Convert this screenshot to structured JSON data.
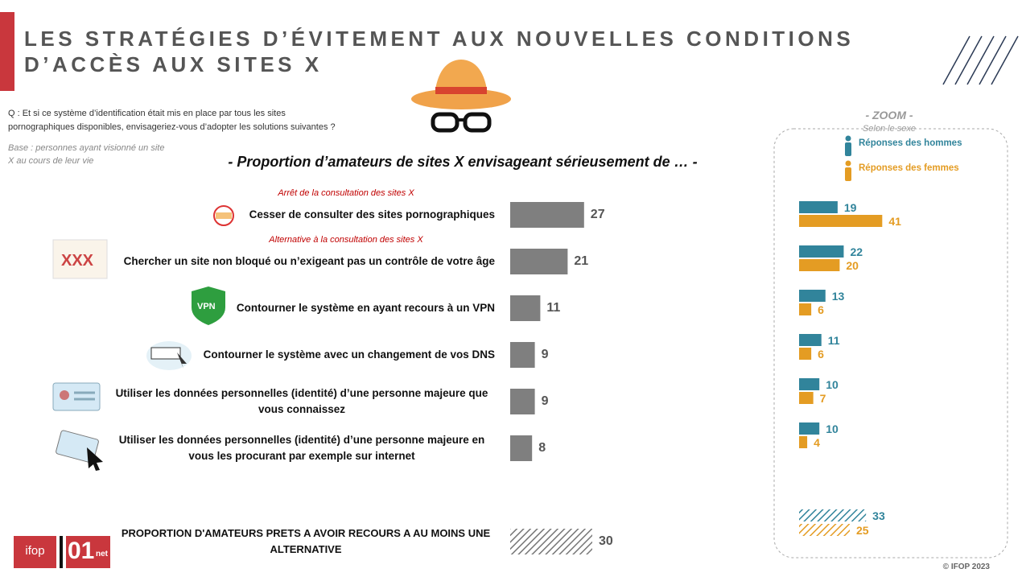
{
  "header": {
    "title_lines": [
      "LES STRATÉGIES D’ÉVITEMENT AUX NOUVELLES CONDITIONS",
      "D’ACCÈS AUX SITES X"
    ],
    "question_lines": [
      "Q : Et si ce système d’identification était mis en place par tous les sites",
      "pornographiques disponibles, envisageriez-vous d’adopter les solutions suivantes ?"
    ],
    "base_lines": [
      "Base : personnes ayant visionné un site",
      "X au cours de leur vie"
    ]
  },
  "chart_data": [
    {
      "type": "hbar",
      "title": "- Proportion d’amateurs de sites X envisageant sérieusement de … -",
      "sections": [
        {
          "label": "Arrêt de la consultation des sites X",
          "start": 0
        },
        {
          "label": "Alternative à la consultation des sites X",
          "start": 1
        }
      ],
      "categories": [
        "Cesser de consulter des sites pornographiques",
        "Chercher un site non bloqué ou n’exigeant pas un contrôle de votre âge",
        "Contourner le système en ayant recours à un VPN",
        "Contourner le système avec un changement de vos DNS",
        "Utiliser les données personnelles (identité) d’une personne majeure que vous connaissez",
        "Utiliser les données personnelles (identité) d’une personne majeure en vous les procurant par exemple sur internet"
      ],
      "values": [
        27,
        21,
        11,
        9,
        9,
        8
      ],
      "color": "#7f7f7f",
      "total": {
        "label": "PROPORTION D'AMATEURS PRETS A AVOIR RECOURS A AU MOINS UNE ALTERNATIVE",
        "value": 30
      }
    },
    {
      "type": "grouped-hbar",
      "title": "- ZOOM -",
      "subtitle": "Selon le sexe",
      "series": [
        {
          "name": "Réponses des hommes",
          "color": "#31849b",
          "values": [
            19,
            22,
            13,
            11,
            10,
            10
          ],
          "total": 33
        },
        {
          "name": "Réponses des femmes",
          "color": "#e49c23",
          "values": [
            41,
            20,
            6,
            6,
            7,
            4
          ],
          "total": 25
        }
      ]
    }
  ],
  "footer": {
    "copyright": "© IFOP 2023",
    "logos": [
      "ifop",
      "01",
      "net"
    ]
  }
}
